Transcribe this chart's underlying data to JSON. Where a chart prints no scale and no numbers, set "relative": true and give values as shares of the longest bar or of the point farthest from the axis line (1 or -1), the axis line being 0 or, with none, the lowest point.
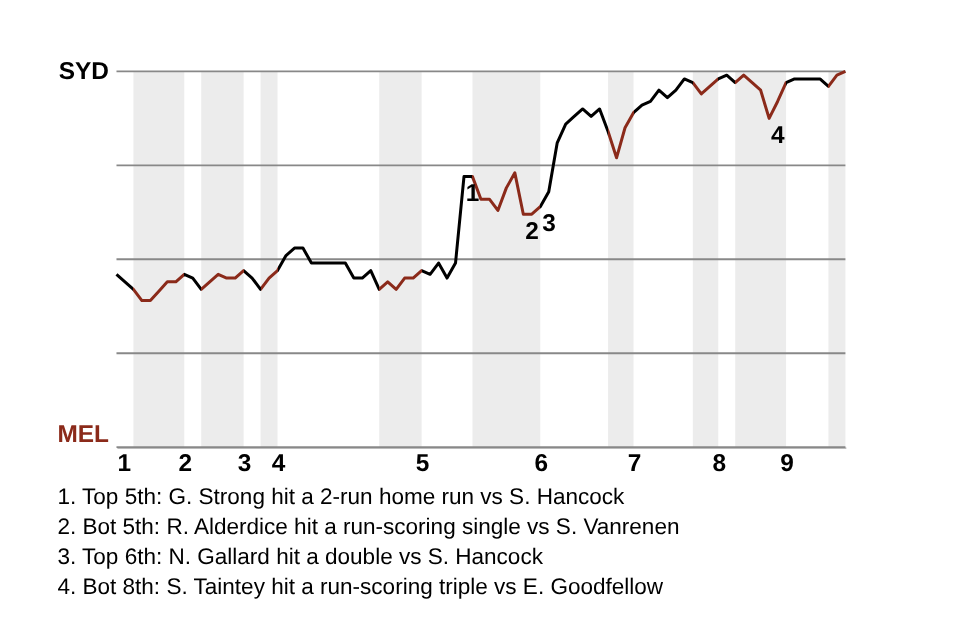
{
  "chart_data": {
    "type": "line",
    "relative": true,
    "grid": "y",
    "categories": [
      "1",
      null,
      null,
      null,
      null,
      null,
      null,
      null,
      "2",
      null,
      null,
      null,
      null,
      null,
      null,
      "3",
      null,
      null,
      null,
      "4",
      null,
      null,
      null,
      null,
      null,
      null,
      null,
      null,
      null,
      null,
      null,
      null,
      null,
      null,
      null,
      null,
      "5",
      null,
      null,
      null,
      null,
      null,
      null,
      null,
      null,
      null,
      null,
      null,
      null,
      null,
      "6",
      null,
      null,
      null,
      null,
      null,
      null,
      null,
      null,
      null,
      null,
      "7",
      null,
      null,
      null,
      null,
      null,
      null,
      null,
      null,
      null,
      "8",
      null,
      null,
      null,
      null,
      null,
      null,
      null,
      "9",
      null,
      null,
      null,
      null,
      null,
      null,
      null
    ],
    "values": [
      0.46,
      0.44,
      0.42,
      0.39,
      0.39,
      0.415,
      0.44,
      0.44,
      0.46,
      0.45,
      0.42,
      0.44,
      0.46,
      0.45,
      0.45,
      0.47,
      0.45,
      0.42,
      0.45,
      0.47,
      0.51,
      0.53,
      0.53,
      0.49,
      0.49,
      0.49,
      0.49,
      0.49,
      0.45,
      0.45,
      0.47,
      0.42,
      0.44,
      0.42,
      0.45,
      0.45,
      0.47,
      0.46,
      0.49,
      0.45,
      0.49,
      0.72,
      0.72,
      0.66,
      0.66,
      0.63,
      0.69,
      0.73,
      0.62,
      0.62,
      0.64,
      0.68,
      0.81,
      0.86,
      0.88,
      0.9,
      0.88,
      0.9,
      0.84,
      0.77,
      0.85,
      0.89,
      0.91,
      0.92,
      0.95,
      0.93,
      0.95,
      0.98,
      0.97,
      0.94,
      0.96,
      0.98,
      0.99,
      0.97,
      0.99,
      0.97,
      0.95,
      0.875,
      0.92,
      0.97,
      0.98,
      0.98,
      0.98,
      0.98,
      0.96,
      0.99,
      1.0
    ],
    "colors": [
      "#000000",
      "#000000",
      "#8b2a1a",
      "#8b2a1a",
      "#8b2a1a",
      "#8b2a1a",
      "#8b2a1a",
      "#8b2a1a",
      "#000000",
      "#000000",
      "#8b2a1a",
      "#8b2a1a",
      "#8b2a1a",
      "#8b2a1a",
      "#8b2a1a",
      "#000000",
      "#000000",
      "#8b2a1a",
      "#8b2a1a",
      "#000000",
      "#000000",
      "#000000",
      "#000000",
      "#000000",
      "#000000",
      "#000000",
      "#000000",
      "#000000",
      "#000000",
      "#000000",
      "#000000",
      "#8b2a1a",
      "#8b2a1a",
      "#8b2a1a",
      "#8b2a1a",
      "#8b2a1a",
      "#000000",
      "#000000",
      "#000000",
      "#000000",
      "#000000",
      "#000000",
      "#8b2a1a",
      "#8b2a1a",
      "#8b2a1a",
      "#8b2a1a",
      "#8b2a1a",
      "#8b2a1a",
      "#8b2a1a",
      "#8b2a1a",
      "#000000",
      "#000000",
      "#000000",
      "#000000",
      "#000000",
      "#000000",
      "#000000",
      "#000000",
      "#8b2a1a",
      "#8b2a1a",
      "#8b2a1a",
      "#000000",
      "#000000",
      "#000000",
      "#000000",
      "#000000",
      "#000000",
      "#000000",
      "#8b2a1a",
      "#8b2a1a",
      "#8b2a1a",
      "#000000",
      "#000000",
      "#8b2a1a",
      "#8b2a1a",
      "#8b2a1a",
      "#8b2a1a",
      "#8b2a1a",
      "#8b2a1a",
      "#000000",
      "#000000",
      "#000000",
      "#000000",
      "#000000",
      "#8b2a1a",
      "#8b2a1a",
      "#8b2a1a"
    ],
    "annotations": [
      "SYD",
      "MEL",
      {
        "text": "1",
        "y": 0.72
      },
      {
        "text": "2",
        "y": 0.62
      },
      {
        "text": "3",
        "y": 0.64
      },
      {
        "text": "4",
        "y": 0.875
      },
      "1. Top 5th: G. Strong hit a 2-run home run vs S. Hancock",
      "2. Bot 5th: R. Alderdice hit a run-scoring single vs S. Vanrenen",
      "3. Top 6th: N. Gallard hit a double vs S. Hancock",
      "4. Bot 8th: S. Taintey hit a run-scoring triple vs E. Goodfellow"
    ]
  }
}
